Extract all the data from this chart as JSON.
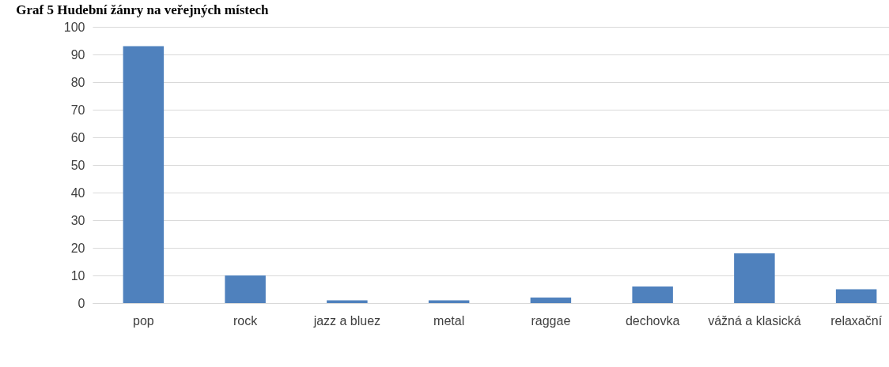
{
  "chart_data": {
    "type": "bar",
    "title": "Graf 5 Hudební žánry na veřejných místech",
    "categories": [
      "pop",
      "rock",
      "jazz a bluez",
      "metal",
      "raggae",
      "dechovka",
      "vážná a klasická",
      "relaxační"
    ],
    "values": [
      93,
      10,
      1,
      1,
      2,
      6,
      18,
      5
    ],
    "color": "#4f81bd",
    "ylim": [
      0,
      100
    ],
    "yticks": [
      0,
      10,
      20,
      30,
      40,
      50,
      60,
      70,
      80,
      90,
      100
    ],
    "grid": "y"
  }
}
